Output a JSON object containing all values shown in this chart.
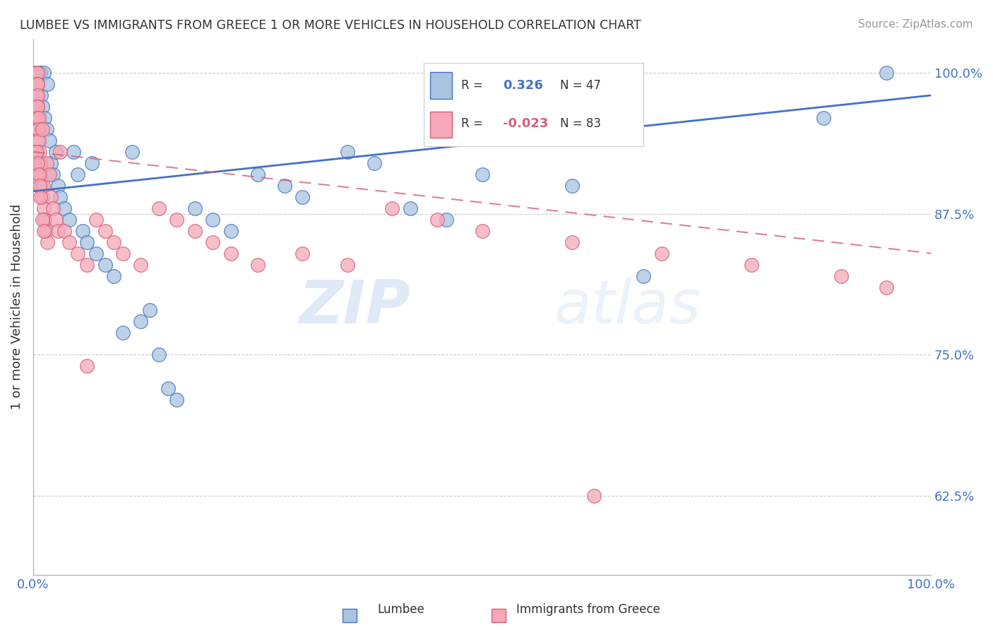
{
  "title": "LUMBEE VS IMMIGRANTS FROM GREECE 1 OR MORE VEHICLES IN HOUSEHOLD CORRELATION CHART",
  "source": "Source: ZipAtlas.com",
  "ylabel": "1 or more Vehicles in Household",
  "xlim": [
    0,
    1.0
  ],
  "ylim": [
    0.555,
    1.03
  ],
  "yticks": [
    0.625,
    0.75,
    0.875,
    1.0
  ],
  "ytick_labels": [
    "62.5%",
    "75.0%",
    "87.5%",
    "100.0%"
  ],
  "legend_r_blue": "0.326",
  "legend_n_blue": "47",
  "legend_r_pink": "-0.023",
  "legend_n_pink": "83",
  "blue_color": "#a8c4e0",
  "pink_color": "#f4a8b8",
  "blue_line_color": "#4472c4",
  "pink_edge_color": "#d4607a",
  "watermark_zip": "ZIP",
  "watermark_atlas": "atlas",
  "lumbee_x": [
    0.005,
    0.007,
    0.008,
    0.009,
    0.01,
    0.012,
    0.013,
    0.015,
    0.016,
    0.018,
    0.02,
    0.022,
    0.025,
    0.028,
    0.03,
    0.035,
    0.04,
    0.045,
    0.05,
    0.055,
    0.06,
    0.065,
    0.07,
    0.08,
    0.09,
    0.1,
    0.11,
    0.12,
    0.13,
    0.14,
    0.15,
    0.16,
    0.18,
    0.2,
    0.22,
    0.25,
    0.28,
    0.3,
    0.35,
    0.38,
    0.42,
    0.46,
    0.5,
    0.6,
    0.68,
    0.88,
    0.95
  ],
  "lumbee_y": [
    0.99,
    1.0,
    1.0,
    0.98,
    0.97,
    1.0,
    0.96,
    0.95,
    0.99,
    0.94,
    0.92,
    0.91,
    0.93,
    0.9,
    0.89,
    0.88,
    0.87,
    0.93,
    0.91,
    0.86,
    0.85,
    0.92,
    0.84,
    0.83,
    0.82,
    0.77,
    0.93,
    0.78,
    0.79,
    0.75,
    0.72,
    0.71,
    0.88,
    0.87,
    0.86,
    0.91,
    0.9,
    0.89,
    0.93,
    0.92,
    0.88,
    0.87,
    0.91,
    0.9,
    0.82,
    0.96,
    1.0
  ],
  "greece_x": [
    0.003,
    0.003,
    0.003,
    0.003,
    0.003,
    0.004,
    0.004,
    0.004,
    0.004,
    0.004,
    0.004,
    0.004,
    0.004,
    0.004,
    0.004,
    0.004,
    0.005,
    0.005,
    0.005,
    0.005,
    0.005,
    0.005,
    0.005,
    0.005,
    0.005,
    0.006,
    0.006,
    0.006,
    0.007,
    0.007,
    0.007,
    0.008,
    0.008,
    0.009,
    0.01,
    0.01,
    0.011,
    0.012,
    0.013,
    0.014,
    0.015,
    0.016,
    0.018,
    0.02,
    0.022,
    0.025,
    0.028,
    0.03,
    0.035,
    0.04,
    0.05,
    0.06,
    0.07,
    0.08,
    0.09,
    0.1,
    0.12,
    0.14,
    0.16,
    0.18,
    0.2,
    0.22,
    0.25,
    0.3,
    0.35,
    0.4,
    0.45,
    0.5,
    0.6,
    0.7,
    0.8,
    0.9,
    0.95,
    0.003,
    0.004,
    0.005,
    0.006,
    0.007,
    0.008,
    0.01,
    0.012,
    0.625,
    0.06
  ],
  "greece_y": [
    1.0,
    1.0,
    1.0,
    1.0,
    0.99,
    1.0,
    1.0,
    0.99,
    0.99,
    0.98,
    0.98,
    0.97,
    0.97,
    0.96,
    0.96,
    0.95,
    1.0,
    0.99,
    0.99,
    0.98,
    0.97,
    0.97,
    0.96,
    0.95,
    0.94,
    0.96,
    0.95,
    0.94,
    0.93,
    0.92,
    0.91,
    0.92,
    0.91,
    0.9,
    0.95,
    0.89,
    0.9,
    0.88,
    0.87,
    0.86,
    0.92,
    0.85,
    0.91,
    0.89,
    0.88,
    0.87,
    0.86,
    0.93,
    0.86,
    0.85,
    0.84,
    0.83,
    0.87,
    0.86,
    0.85,
    0.84,
    0.83,
    0.88,
    0.87,
    0.86,
    0.85,
    0.84,
    0.83,
    0.84,
    0.83,
    0.88,
    0.87,
    0.86,
    0.85,
    0.84,
    0.83,
    0.82,
    0.81,
    0.93,
    0.93,
    0.92,
    0.91,
    0.9,
    0.89,
    0.87,
    0.86,
    0.625,
    0.74
  ],
  "blue_trend_x": [
    0.0,
    1.0
  ],
  "blue_trend_y": [
    0.895,
    0.98
  ],
  "pink_trend_x": [
    0.0,
    1.0
  ],
  "pink_trend_y": [
    0.93,
    0.84
  ]
}
